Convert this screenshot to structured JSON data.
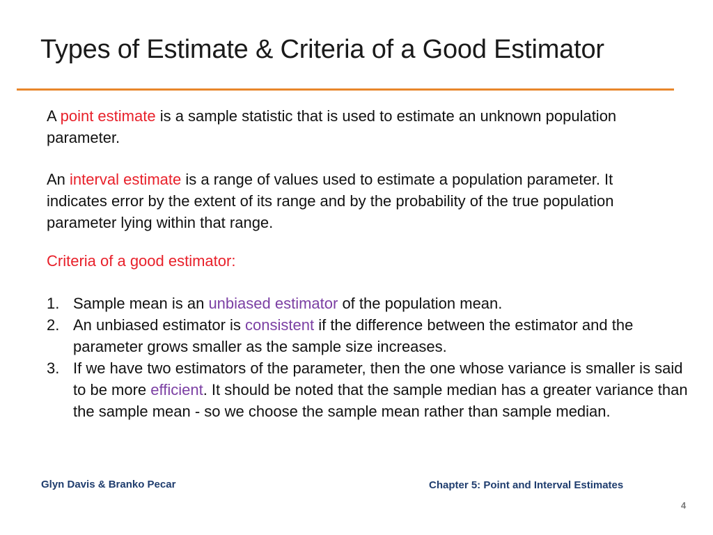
{
  "slide": {
    "title": "Types of Estimate & Criteria of a Good Estimator",
    "accent_color": "#e8862a",
    "point_estimate": {
      "prefix": "A",
      "term": "point estimate",
      "rest": "is a sample statistic that is used to estimate an unknown population parameter."
    },
    "interval_estimate": {
      "prefix": "An",
      "term": "interval estimate",
      "rest": "is a range of values used to estimate a population parameter. It indicates error by the extent of its range and by the probability of the true population parameter lying within that range."
    },
    "criteria_heading": "Criteria of a good estimator:",
    "criteria": [
      {
        "number": "1.",
        "before": "Sample mean is an ",
        "term": "unbiased estimator",
        "after": " of the population mean."
      },
      {
        "number": "2.",
        "before": "An unbiased estimator is ",
        "term": "consistent",
        "after": " if the difference between the estimator and the parameter grows smaller as the sample size increases."
      },
      {
        "number": "3.",
        "before": "If we have two estimators of the parameter, then the one whose variance is smaller is said to be more ",
        "term": "efficient",
        "after": ". It should be noted that the sample median has a greater variance than the sample mean - so we choose the sample mean rather than sample median."
      }
    ]
  },
  "footer": {
    "author": "Glyn Davis & Branko Pecar",
    "chapter": "Chapter 5: Point and Interval Estimates",
    "page_number": "4"
  },
  "colors": {
    "term_red": "#e8202a",
    "term_purple": "#7b3fa3",
    "footer_blue": "#1f3d6e"
  }
}
